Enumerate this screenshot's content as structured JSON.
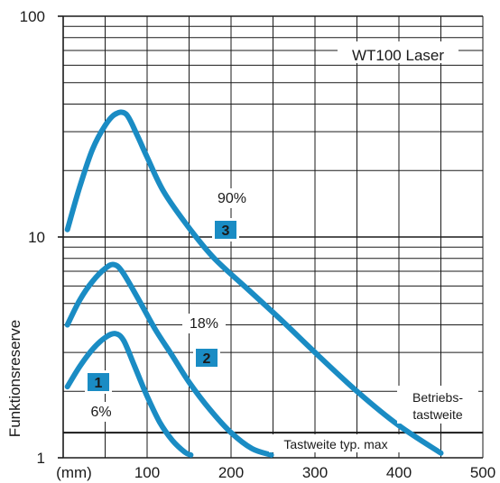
{
  "chart_data": {
    "type": "line",
    "title": "WT100 Laser",
    "xlabel": "",
    "ylabel": "Funktionsreserve",
    "x_unit_label": "(mm)",
    "xlim": [
      0,
      500
    ],
    "ylim": [
      1,
      100
    ],
    "yscale": "log",
    "x_ticks": [
      "100",
      "200",
      "300",
      "400",
      "500"
    ],
    "y_ticks": [
      "1",
      "10",
      "100"
    ],
    "grid": true,
    "series": [
      {
        "name": "90%",
        "marker": "3",
        "x": [
          5,
          20,
          35,
          50,
          62,
          75,
          88,
          100,
          120,
          150,
          180,
          220,
          260,
          300,
          350,
          400,
          450
        ],
        "y": [
          10.8,
          17,
          25,
          32,
          36,
          36,
          29,
          23,
          16,
          11,
          8,
          5.8,
          4.2,
          3.0,
          2.0,
          1.4,
          1.05
        ]
      },
      {
        "name": "18%",
        "marker": "2",
        "x": [
          5,
          20,
          35,
          50,
          60,
          70,
          90,
          110,
          130,
          150,
          175,
          200,
          225,
          248
        ],
        "y": [
          4.0,
          5.2,
          6.3,
          7.2,
          7.5,
          7.0,
          5.2,
          3.8,
          2.9,
          2.2,
          1.65,
          1.3,
          1.1,
          1.03
        ]
      },
      {
        "name": "6%",
        "marker": "1",
        "x": [
          5,
          20,
          35,
          50,
          62,
          72,
          85,
          100,
          115,
          130,
          145,
          152
        ],
        "y": [
          2.1,
          2.6,
          3.1,
          3.5,
          3.65,
          3.4,
          2.6,
          1.9,
          1.45,
          1.2,
          1.06,
          1.03
        ]
      }
    ],
    "reference_lines": [
      {
        "y": 1.3,
        "label": "Tastweite typ. max"
      }
    ],
    "annotations": {
      "operating_range_line1": "Betriebs-",
      "operating_range_line2": "tastweite"
    },
    "colors": {
      "curve": "#1a8cc4",
      "marker_fill": "#1a8cc4",
      "marker_text": "#ffffff",
      "grid": "#1a1a1a"
    }
  }
}
